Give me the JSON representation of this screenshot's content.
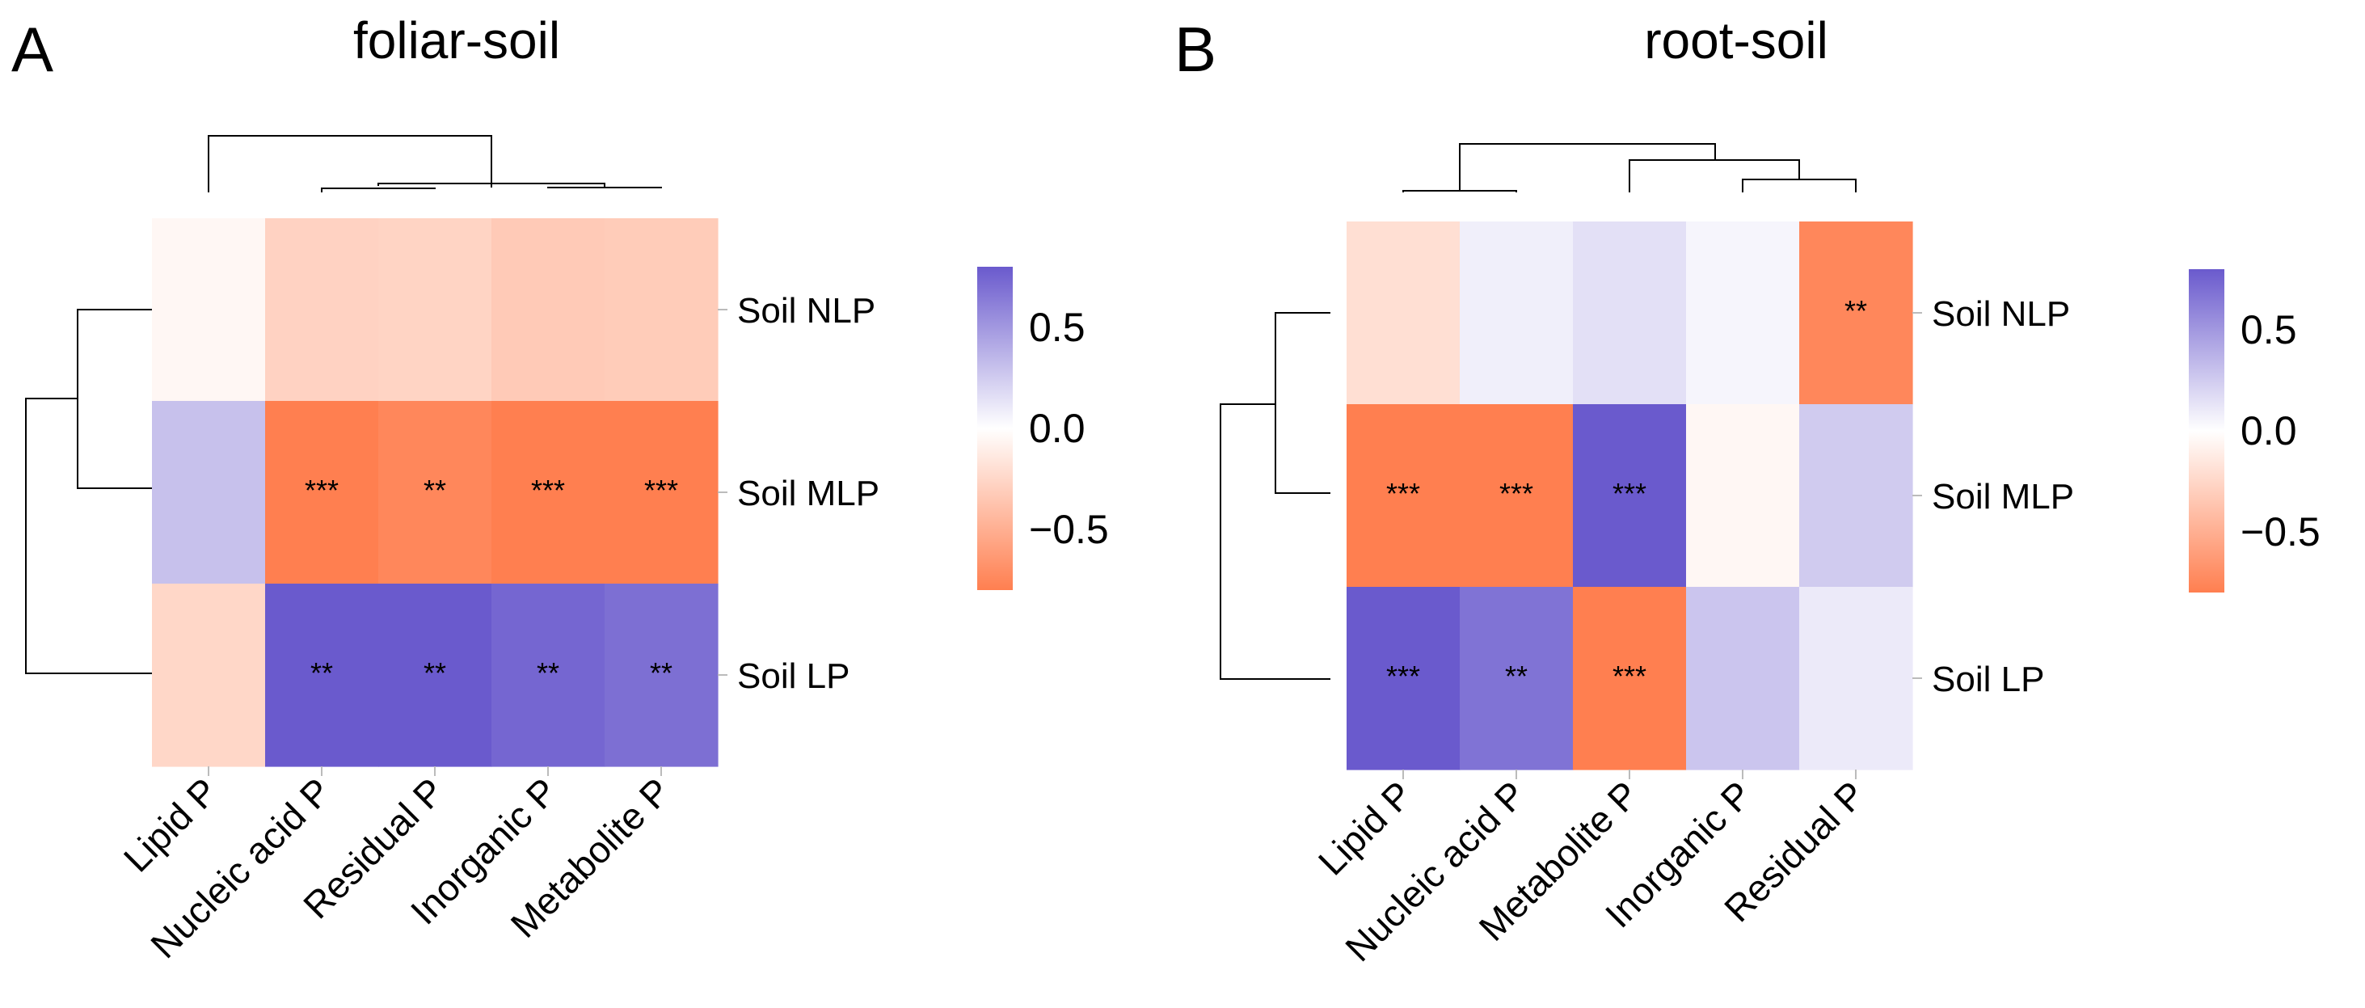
{
  "chart_data": [
    {
      "type": "heatmap",
      "panel_label": "A",
      "title": "foliar-soil",
      "rows": [
        "Soil NLP",
        "Soil MLP",
        "Soil LP"
      ],
      "columns": [
        "Lipid P",
        "Nucleic acid P",
        "Residual P",
        "Inorganic P",
        "Metabolite P"
      ],
      "values": [
        [
          -0.05,
          -0.28,
          -0.27,
          -0.33,
          -0.32
        ],
        [
          0.3,
          -0.82,
          -0.75,
          -0.8,
          -0.82
        ],
        [
          -0.25,
          0.86,
          0.82,
          0.74,
          0.7
        ]
      ],
      "significance": [
        [
          "",
          "",
          "",
          "",
          ""
        ],
        [
          "",
          "***",
          "**",
          "***",
          "***"
        ],
        [
          "",
          "**",
          "**",
          "**",
          "**"
        ]
      ],
      "row_dendrogram": true,
      "column_dendrogram": true
    },
    {
      "type": "heatmap",
      "panel_label": "B",
      "title": "root-soil",
      "rows": [
        "Soil NLP",
        "Soil MLP",
        "Soil LP"
      ],
      "columns": [
        "Lipid P",
        "Nucleic acid P",
        "Metabolite P",
        "Inorganic P",
        "Residual P"
      ],
      "values": [
        [
          -0.2,
          0.08,
          0.15,
          0.05,
          -0.75
        ],
        [
          -0.8,
          -0.82,
          0.9,
          -0.05,
          0.25
        ],
        [
          0.88,
          0.68,
          -0.82,
          0.28,
          0.1
        ]
      ],
      "significance": [
        [
          "",
          "",
          "",
          "",
          "**"
        ],
        [
          "***",
          "***",
          "***",
          "",
          ""
        ],
        [
          "***",
          "**",
          "***",
          "",
          ""
        ]
      ],
      "row_dendrogram": true,
      "column_dendrogram": true
    }
  ],
  "colorbar": {
    "ticks": [
      0.5,
      0.0,
      -0.5
    ],
    "tick_labels": [
      "0.5",
      "0.0",
      "−0.5"
    ],
    "range": [
      -0.8,
      0.8
    ],
    "low_color": "#FF7F50",
    "mid_color": "#FFFFFF",
    "high_color": "#6A5ACD"
  }
}
